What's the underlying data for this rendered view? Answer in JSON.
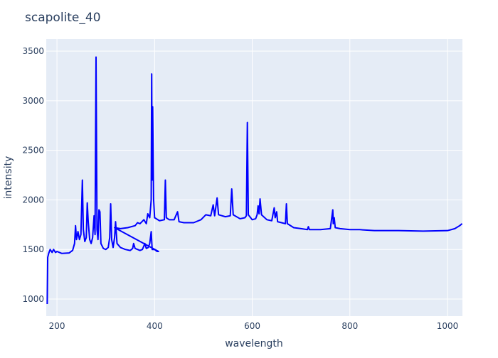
{
  "chart_data": {
    "type": "line",
    "title": "scapolite_40",
    "x_label": "wavelength",
    "y_label": "intensity",
    "x": [
      180,
      181,
      183,
      186,
      190,
      193,
      197,
      200,
      210,
      225,
      232,
      236,
      238,
      240,
      243,
      246,
      249,
      252,
      254,
      257,
      260,
      262,
      264,
      267,
      270,
      273,
      276,
      278,
      280,
      282,
      284,
      286,
      288,
      290,
      295,
      300,
      305,
      308,
      310,
      312,
      315,
      318,
      320,
      323,
      330,
      340,
      350,
      355,
      357,
      360,
      370,
      375,
      380,
      383,
      387,
      390,
      393,
      395,
      400,
      405,
      408,
      318,
      330,
      345,
      360,
      365,
      370,
      378,
      383,
      386,
      390,
      393,
      394,
      395,
      396,
      398,
      400,
      410,
      420,
      422,
      424,
      430,
      440,
      447,
      450,
      460,
      480,
      495,
      505,
      515,
      520,
      523,
      528,
      531,
      545,
      555,
      558,
      561,
      575,
      585,
      588,
      590,
      592,
      600,
      607,
      610,
      612,
      614,
      616,
      619,
      630,
      640,
      645,
      647,
      650,
      652,
      660,
      668,
      670,
      672,
      685,
      700,
      713,
      715,
      717,
      740,
      760,
      765,
      766,
      768,
      770,
      780,
      800,
      820,
      850,
      900,
      950,
      1000,
      1015,
      1025,
      1030
    ],
    "series": [
      {
        "name": "intensity",
        "color": "#0000ff",
        "values": [
          950,
          1420,
          1460,
          1500,
          1470,
          1500,
          1470,
          1480,
          1460,
          1465,
          1490,
          1560,
          1740,
          1600,
          1680,
          1600,
          1650,
          2200,
          1700,
          1580,
          1620,
          1970,
          1780,
          1600,
          1560,
          1620,
          1840,
          1650,
          3440,
          1700,
          1600,
          1900,
          1880,
          1560,
          1510,
          1500,
          1520,
          1620,
          1960,
          1600,
          1520,
          1620,
          1780,
          1560,
          1520,
          1500,
          1490,
          1510,
          1560,
          1510,
          1490,
          1500,
          1560,
          1510,
          1520,
          1560,
          1680,
          1500,
          1500,
          1480,
          1480,
          1720,
          1710,
          1720,
          1740,
          1770,
          1760,
          1800,
          1760,
          1860,
          1820,
          2000,
          3270,
          2200,
          2940,
          2000,
          1820,
          1790,
          1800,
          2200,
          1820,
          1800,
          1800,
          1880,
          1780,
          1770,
          1770,
          1800,
          1850,
          1840,
          1950,
          1840,
          2020,
          1850,
          1830,
          1840,
          2110,
          1850,
          1810,
          1820,
          1840,
          2780,
          1850,
          1800,
          1810,
          1850,
          1940,
          1860,
          2010,
          1850,
          1800,
          1790,
          1920,
          1820,
          1880,
          1780,
          1770,
          1760,
          1960,
          1760,
          1720,
          1710,
          1700,
          1730,
          1700,
          1700,
          1710,
          1900,
          1760,
          1820,
          1720,
          1710,
          1700,
          1700,
          1690,
          1690,
          1685,
          1690,
          1710,
          1740,
          1760
        ]
      }
    ],
    "xlim": [
      178,
      1030.6
    ],
    "ylim": [
      828,
      3622
    ],
    "xticks": [
      200,
      400,
      600,
      800,
      1000
    ],
    "yticks": [
      1000,
      1500,
      2000,
      2500,
      3000,
      3500
    ],
    "grid": true
  }
}
